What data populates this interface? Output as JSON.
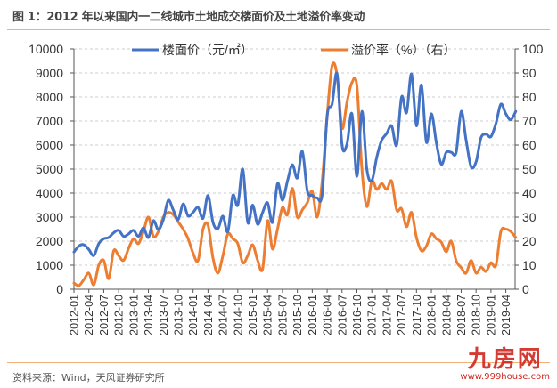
{
  "title": "图 1：2012 年以来国内一二线城市土地成交楼面价及土地溢价率变动",
  "source": "资料来源：Wind，天风证券研究所",
  "watermark": {
    "logo": "九房网",
    "url": "www.999house.com"
  },
  "colors": {
    "price": "#4472c4",
    "premium": "#ed7d31",
    "rule": "#f0b27a",
    "watermark": "#d0261e"
  },
  "chart_data": {
    "type": "line",
    "title": "",
    "legend_position": "top",
    "grid": true,
    "left_axis": {
      "ylim": [
        0,
        10000
      ],
      "ticks": [
        "0",
        "1000",
        "2000",
        "3000",
        "4000",
        "5000",
        "6000",
        "7000",
        "8000",
        "9000",
        "10000"
      ]
    },
    "right_axis": {
      "ylim": [
        0,
        100
      ],
      "ticks": [
        "0",
        "10",
        "20",
        "30",
        "40",
        "50",
        "60",
        "70",
        "80",
        "90",
        "100"
      ]
    },
    "x_tick_labels": [
      "2012-01",
      "2012-04",
      "2012-07",
      "2012-10",
      "2013-01",
      "2013-04",
      "2013-07",
      "2013-10",
      "2014-01",
      "2014-04",
      "2014-07",
      "2014-10",
      "2015-01",
      "2015-04",
      "2015-07",
      "2015-10",
      "2016-01",
      "2016-04",
      "2016-07",
      "2016-10",
      "2017-01",
      "2017-04",
      "2017-07",
      "2017-10",
      "2018-01",
      "2018-04",
      "2018-07",
      "2018-10",
      "2019-01",
      "2019-04"
    ],
    "x_start": "2012-01",
    "x_end": "2019-06",
    "series": [
      {
        "name": "楼面价（元/㎡）",
        "axis": "left",
        "values": [
          1550,
          1800,
          1850,
          1650,
          1400,
          1900,
          2100,
          2150,
          2350,
          2450,
          2200,
          2300,
          2450,
          2200,
          2550,
          2150,
          2850,
          2480,
          2900,
          3700,
          3300,
          2900,
          3550,
          3050,
          3200,
          3400,
          2950,
          3900,
          2780,
          2520,
          3040,
          2400,
          3900,
          3500,
          5000,
          2780,
          3500,
          2700,
          3200,
          3600,
          2780,
          4400,
          3700,
          4500,
          5180,
          4630,
          5740,
          4100,
          3900,
          3800,
          3950,
          7220,
          7700,
          8960,
          6000,
          6050,
          7300,
          4700,
          7400,
          5000,
          4520,
          5500,
          6200,
          6480,
          6800,
          6000,
          8000,
          7350,
          8960,
          6800,
          8500,
          6110,
          7300,
          6100,
          5200,
          5700,
          5700,
          5700,
          7400,
          6200,
          5100,
          5300,
          6300,
          6450,
          6350,
          6900,
          7700,
          7300,
          7050,
          7400
        ]
      },
      {
        "name": "溢价率（%）（右）",
        "axis": "right",
        "values": [
          2.6,
          1.5,
          4,
          6.7,
          1.8,
          10,
          12,
          4.4,
          16,
          14,
          12,
          17,
          21,
          19,
          24,
          30,
          22,
          24,
          30,
          32,
          31,
          28,
          25,
          21,
          15,
          12,
          25,
          26.7,
          13,
          6.7,
          14,
          23,
          21,
          19,
          11,
          14,
          18.5,
          12,
          8.5,
          28.5,
          16.7,
          25,
          34,
          31,
          42,
          30,
          33,
          36,
          40.7,
          30,
          45,
          72,
          93,
          89,
          67,
          78,
          86,
          84.6,
          50,
          34.4,
          45,
          41.5,
          44,
          41.5,
          45,
          33,
          33.5,
          26,
          32,
          21.5,
          16,
          18,
          23,
          21,
          19.6,
          15.6,
          20,
          11.8,
          9,
          6.7,
          12,
          6.7,
          9.2,
          7.4,
          11,
          10,
          24,
          25,
          24,
          21.5
        ]
      }
    ]
  }
}
